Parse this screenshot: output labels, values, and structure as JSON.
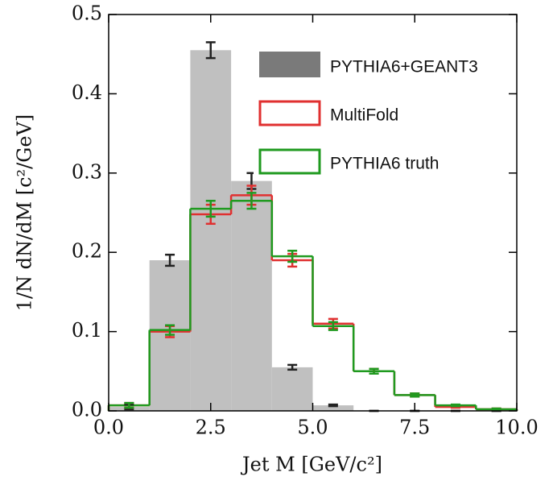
{
  "chart_data": {
    "type": "histogram",
    "x_label": "Jet M [GeV/c²]",
    "y_label": "1/N dN/dM [c²/GeV]",
    "bins": [
      0,
      1,
      2,
      3,
      4,
      5,
      6,
      7,
      8,
      9,
      10
    ],
    "series": [
      {
        "name": "PYTHIA6+GEANT3",
        "color": "#c0c0c0",
        "style": "fill",
        "values": [
          0.005,
          0.19,
          0.455,
          0.29,
          0.055,
          0.007,
          0.0,
          0.0,
          0.0,
          0.0
        ],
        "errors": [
          0.003,
          0.007,
          0.01,
          0.01,
          0.003,
          0.001,
          0.0,
          0.0,
          0.0,
          0.0
        ]
      },
      {
        "name": "MultiFold",
        "color": "#e03030",
        "style": "step",
        "values": [
          0.007,
          0.1,
          0.248,
          0.272,
          0.19,
          0.11,
          0.05,
          0.02,
          0.005,
          0.002
        ],
        "errors": [
          0.003,
          0.007,
          0.012,
          0.012,
          0.008,
          0.006,
          0.003,
          0.002,
          0.001,
          0.001
        ]
      },
      {
        "name": "PYTHIA6 truth",
        "color": "#1f9a1f",
        "style": "step",
        "values": [
          0.007,
          0.102,
          0.255,
          0.265,
          0.195,
          0.107,
          0.05,
          0.02,
          0.007,
          0.002
        ],
        "errors": [
          0.003,
          0.006,
          0.01,
          0.01,
          0.007,
          0.005,
          0.003,
          0.002,
          0.001,
          0.001
        ]
      }
    ],
    "xlim": [
      0,
      10
    ],
    "ylim": [
      0,
      0.5
    ],
    "xticks": [
      {
        "value": 0,
        "label": "0.0"
      },
      2.5,
      {
        "value": 5,
        "label": "5.0"
      },
      7.5,
      {
        "value": 10,
        "label": "10.0"
      }
    ],
    "yticks": [
      {
        "value": 0,
        "label": "0.0"
      },
      0.1,
      0.2,
      0.3,
      0.4,
      0.5
    ],
    "legend": "upper right"
  }
}
